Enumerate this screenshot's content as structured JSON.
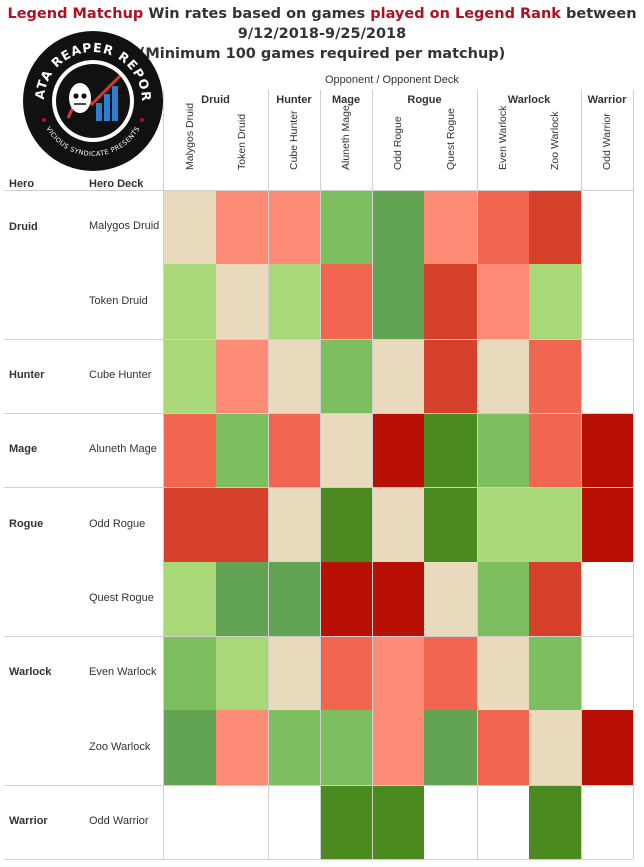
{
  "title": {
    "part1": "Legend Matchup",
    "part2": " Win rates based on games ",
    "part3": "played on Legend Rank",
    "part4": "  between",
    "line2": "9/12/2018-9/25/2018",
    "line3": "(Minimum 100 games required per matchup)"
  },
  "logo": {
    "top_text": "DATA REAPER REPORT",
    "bottom_text": "VICIOUS SYNDICATE PRESENTS"
  },
  "axis_title": "Opponent  /  Opponent Deck",
  "row_header_hero": "Hero",
  "row_header_deck": "Hero Deck",
  "colors": {
    "a": "#e9dabd",
    "b": "#fe8b76",
    "c": "#f06650",
    "d": "#d63f2a",
    "e": "#b91005",
    "f": "#a9d879",
    "g": "#7dbf5f",
    "h": "#62a354",
    "i": "#4a8a1f",
    "w": "#ffffff"
  },
  "col_groups": [
    {
      "hero": "Druid",
      "decks": [
        "Malygos Druid",
        "Token Druid"
      ]
    },
    {
      "hero": "Hunter",
      "decks": [
        "Cube Hunter"
      ]
    },
    {
      "hero": "Mage",
      "decks": [
        "Aluneth Mage"
      ]
    },
    {
      "hero": "Rogue",
      "decks": [
        "Odd Rogue",
        "Quest Rogue"
      ]
    },
    {
      "hero": "Warlock",
      "decks": [
        "Even Warlock",
        "Zoo Warlock"
      ]
    },
    {
      "hero": "Warrior",
      "decks": [
        "Odd Warrior"
      ]
    }
  ],
  "rows": [
    {
      "hero": "Druid",
      "deck": "Malygos Druid"
    },
    {
      "hero": "",
      "deck": "Token Druid"
    },
    {
      "hero": "Hunter",
      "deck": "Cube Hunter"
    },
    {
      "hero": "Mage",
      "deck": "Aluneth Mage"
    },
    {
      "hero": "Rogue",
      "deck": "Odd Rogue"
    },
    {
      "hero": "",
      "deck": "Quest Rogue"
    },
    {
      "hero": "Warlock",
      "deck": "Even Warlock"
    },
    {
      "hero": "",
      "deck": "Zoo Warlock"
    },
    {
      "hero": "Warrior",
      "deck": "Odd Warrior"
    }
  ],
  "chart_data": {
    "type": "heatmap",
    "title": "Legend Matchup Win rates based on games played on Legend Rank between 9/12/2018-9/25/2018 (Minimum 100 games required per matchup)",
    "x_categories": [
      "Malygos Druid",
      "Token Druid",
      "Cube Hunter",
      "Aluneth Mage",
      "Odd Rogue",
      "Quest Rogue",
      "Even Warlock",
      "Zoo Warlock",
      "Odd Warrior"
    ],
    "y_categories": [
      "Malygos Druid",
      "Token Druid",
      "Cube Hunter",
      "Aluneth Mage",
      "Odd Rogue",
      "Quest Rogue",
      "Even Warlock",
      "Zoo Warlock",
      "Odd Warrior"
    ],
    "color_scale": [
      "e",
      "d",
      "c",
      "b",
      "a",
      "f",
      "g",
      "h",
      "i"
    ],
    "cells": [
      [
        "a",
        "b",
        "b",
        "g",
        "h",
        "b",
        "c",
        "d",
        "w"
      ],
      [
        "f",
        "a",
        "f",
        "c",
        "h",
        "d",
        "b",
        "f",
        "w"
      ],
      [
        "f",
        "b",
        "a",
        "g",
        "a",
        "d",
        "a",
        "c",
        "w"
      ],
      [
        "c",
        "g",
        "c",
        "a",
        "e",
        "i",
        "g",
        "c",
        "e"
      ],
      [
        "d",
        "d",
        "a",
        "i",
        "a",
        "i",
        "f",
        "f",
        "e"
      ],
      [
        "f",
        "h",
        "h",
        "e",
        "e",
        "a",
        "g",
        "d",
        "w"
      ],
      [
        "g",
        "f",
        "a",
        "c",
        "b",
        "c",
        "a",
        "g",
        "w"
      ],
      [
        "h",
        "b",
        "g",
        "g",
        "b",
        "h",
        "c",
        "a",
        "e"
      ],
      [
        "w",
        "w",
        "w",
        "i",
        "i",
        "w",
        "w",
        "i",
        "w"
      ]
    ]
  }
}
